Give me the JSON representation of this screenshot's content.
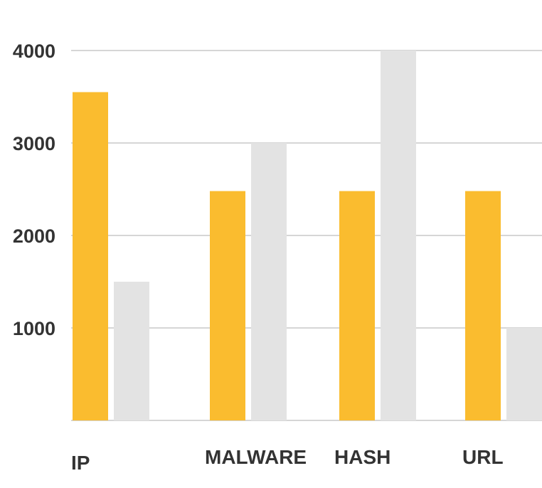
{
  "chart_data": {
    "type": "bar",
    "categories": [
      "IP",
      "MALWARE",
      "HASH",
      "URL"
    ],
    "series": [
      {
        "values": [
          3550,
          2480,
          2480,
          2480
        ],
        "color": "#FABC2F"
      },
      {
        "values": [
          1500,
          3000,
          4000,
          1000
        ],
        "color": "#E3E3E3"
      }
    ],
    "ylim": [
      0,
      4000
    ],
    "yticks": [
      "1000",
      "2000",
      "3000",
      "4000"
    ],
    "grid": true,
    "gridline_color": "#D6D6D6",
    "legend": "none",
    "title": "",
    "xlabel": "",
    "ylabel": ""
  }
}
